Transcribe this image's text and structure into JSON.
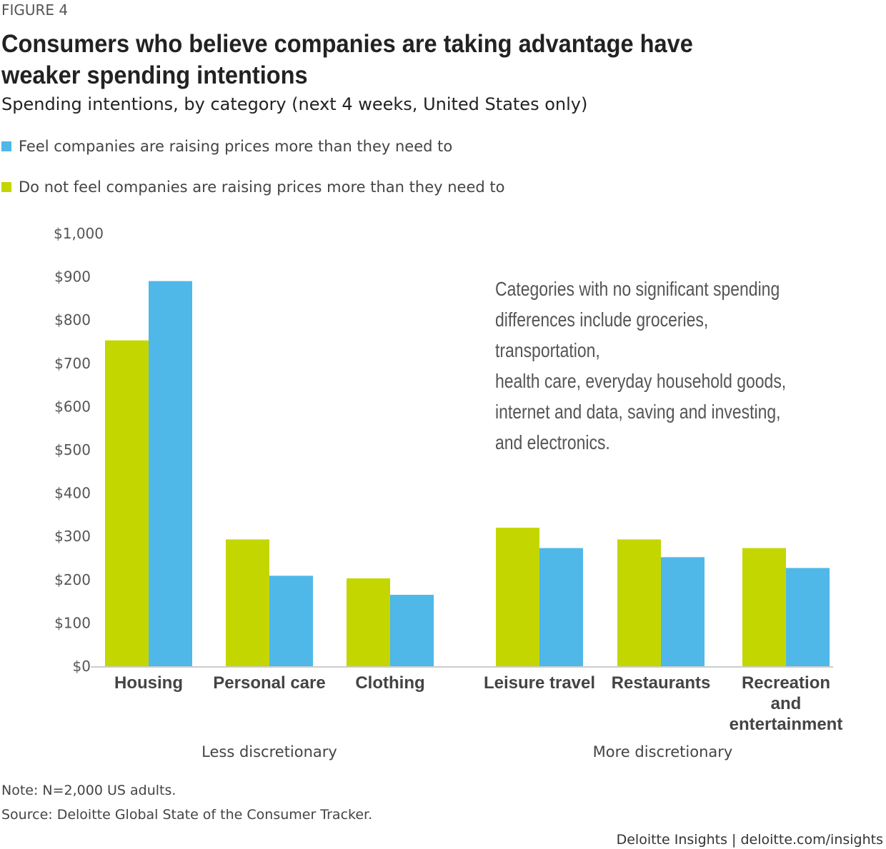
{
  "figure_label": "FIGURE 4",
  "title": "Consumers who believe companies are taking advantage have weaker spending intentions",
  "subtitle": "Spending intentions, by category (next 4 weeks, United States only)",
  "annotation": "Categories with no significant spending\ndifferences include groceries, transportation,\nhealth care, everyday household goods,\ninternet and data, saving and investing,\nand electronics.",
  "note": "Note: N=2,000 US adults.",
  "source": "Source: Deloitte Global State of the Consumer Tracker.",
  "footer": "Deloitte Insights | deloitte.com/insights",
  "chart_data": {
    "type": "bar",
    "categories": [
      "Housing",
      "Personal care",
      "Clothing",
      "Leisure travel",
      "Restaurants",
      "Recreation and entertainment"
    ],
    "groups": [
      {
        "label": "Less discretionary",
        "categories": [
          0,
          1,
          2
        ]
      },
      {
        "label": "More discretionary",
        "categories": [
          3,
          4,
          5
        ]
      }
    ],
    "series": [
      {
        "name": "Do not feel companies are raising prices more than they need to",
        "color": "#C4D600",
        "values": [
          753,
          293,
          203,
          320,
          293,
          273
        ]
      },
      {
        "name": "Feel companies are raising prices more than they need to",
        "color": "#4FB8E8",
        "values": [
          890,
          209,
          165,
          273,
          252,
          227
        ]
      }
    ],
    "legend": [
      "Feel companies are raising prices more than they need to",
      "Do not feel companies are raising prices more than they need to"
    ],
    "legend_colors": [
      "#4FB8E8",
      "#C4D600"
    ],
    "yticks": [
      "$0",
      "$100",
      "$200",
      "$300",
      "$400",
      "$500",
      "$600",
      "$700",
      "$800",
      "$900",
      "$1,000"
    ],
    "ylim": [
      0,
      1000
    ],
    "grid": false,
    "legend_position": "top-left"
  }
}
